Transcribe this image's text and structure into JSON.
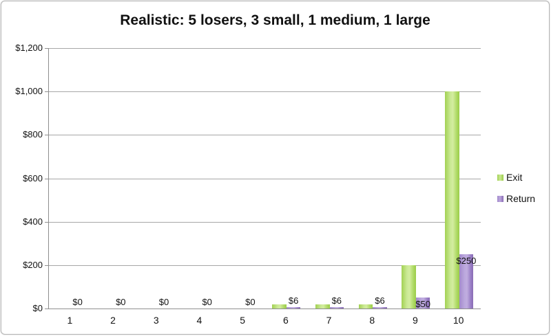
{
  "title": "Realistic: 5 losers, 3 small, 1 medium, 1 large",
  "legend": {
    "items": [
      {
        "label": "Exit"
      },
      {
        "label": "Return"
      }
    ]
  },
  "chart_data": {
    "type": "bar",
    "title": "Realistic: 5 losers, 3 small, 1 medium, 1 large",
    "categories": [
      "1",
      "2",
      "3",
      "4",
      "5",
      "6",
      "7",
      "8",
      "9",
      "10"
    ],
    "series": [
      {
        "name": "Exit",
        "color": "#aad45e",
        "values": [
          0,
          0,
          0,
          0,
          0,
          20,
          20,
          20,
          200,
          1000
        ]
      },
      {
        "name": "Return",
        "color": "#9c82c6",
        "values": [
          0,
          0,
          0,
          0,
          0,
          6,
          6,
          6,
          50,
          250
        ]
      }
    ],
    "data_labels_series": "Return",
    "data_labels": [
      "$0",
      "$0",
      "$0",
      "$0",
      "$0",
      "$6",
      "$6",
      "$6",
      "$50",
      "$250"
    ],
    "xlabel": "",
    "ylabel": "",
    "ylim": [
      0,
      1200
    ],
    "y_ticks": [
      {
        "value": 1200,
        "label": "$1,200"
      },
      {
        "value": 1000,
        "label": "$1,000"
      },
      {
        "value": 800,
        "label": "$800"
      },
      {
        "value": 600,
        "label": "$600"
      },
      {
        "value": 400,
        "label": "$400"
      },
      {
        "value": 200,
        "label": "$200"
      },
      {
        "value": 0,
        "label": "$0"
      }
    ],
    "grid": true,
    "legend_position": "right"
  }
}
